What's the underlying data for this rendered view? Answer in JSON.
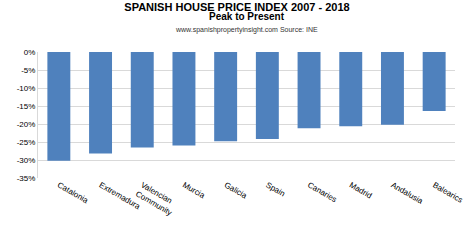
{
  "chart_data": {
    "type": "bar",
    "title": "SPANISH HOUSE PRICE INDEX 2007 - 2018",
    "subtitle": "Peak to Present",
    "annotations": [
      "www.spanishpropertyinsight.com Source: INE"
    ],
    "categories": [
      "Catalonia",
      "Extremadura",
      "Valencian Community",
      "Murcia",
      "Galicia",
      "Spain",
      "Canaries",
      "Madrid",
      "Andalusia",
      "Balearics"
    ],
    "values": [
      -30.2,
      -28.2,
      -26.5,
      -26.0,
      -24.8,
      -24.2,
      -21.2,
      -20.6,
      -20.2,
      -16.4
    ],
    "color": "#4f81bd",
    "ylim": [
      -35,
      0
    ],
    "yticks": [
      {
        "value": 0,
        "label": "0%"
      },
      {
        "value": -5,
        "label": "-5%"
      },
      {
        "value": -10,
        "label": "-10%"
      },
      {
        "value": -15,
        "label": "-15%"
      },
      {
        "value": -20,
        "label": "-20%"
      },
      {
        "value": -25,
        "label": "-25%"
      },
      {
        "value": -30,
        "label": "-30%"
      },
      {
        "value": -35,
        "label": "-35%"
      }
    ],
    "grid": true
  }
}
